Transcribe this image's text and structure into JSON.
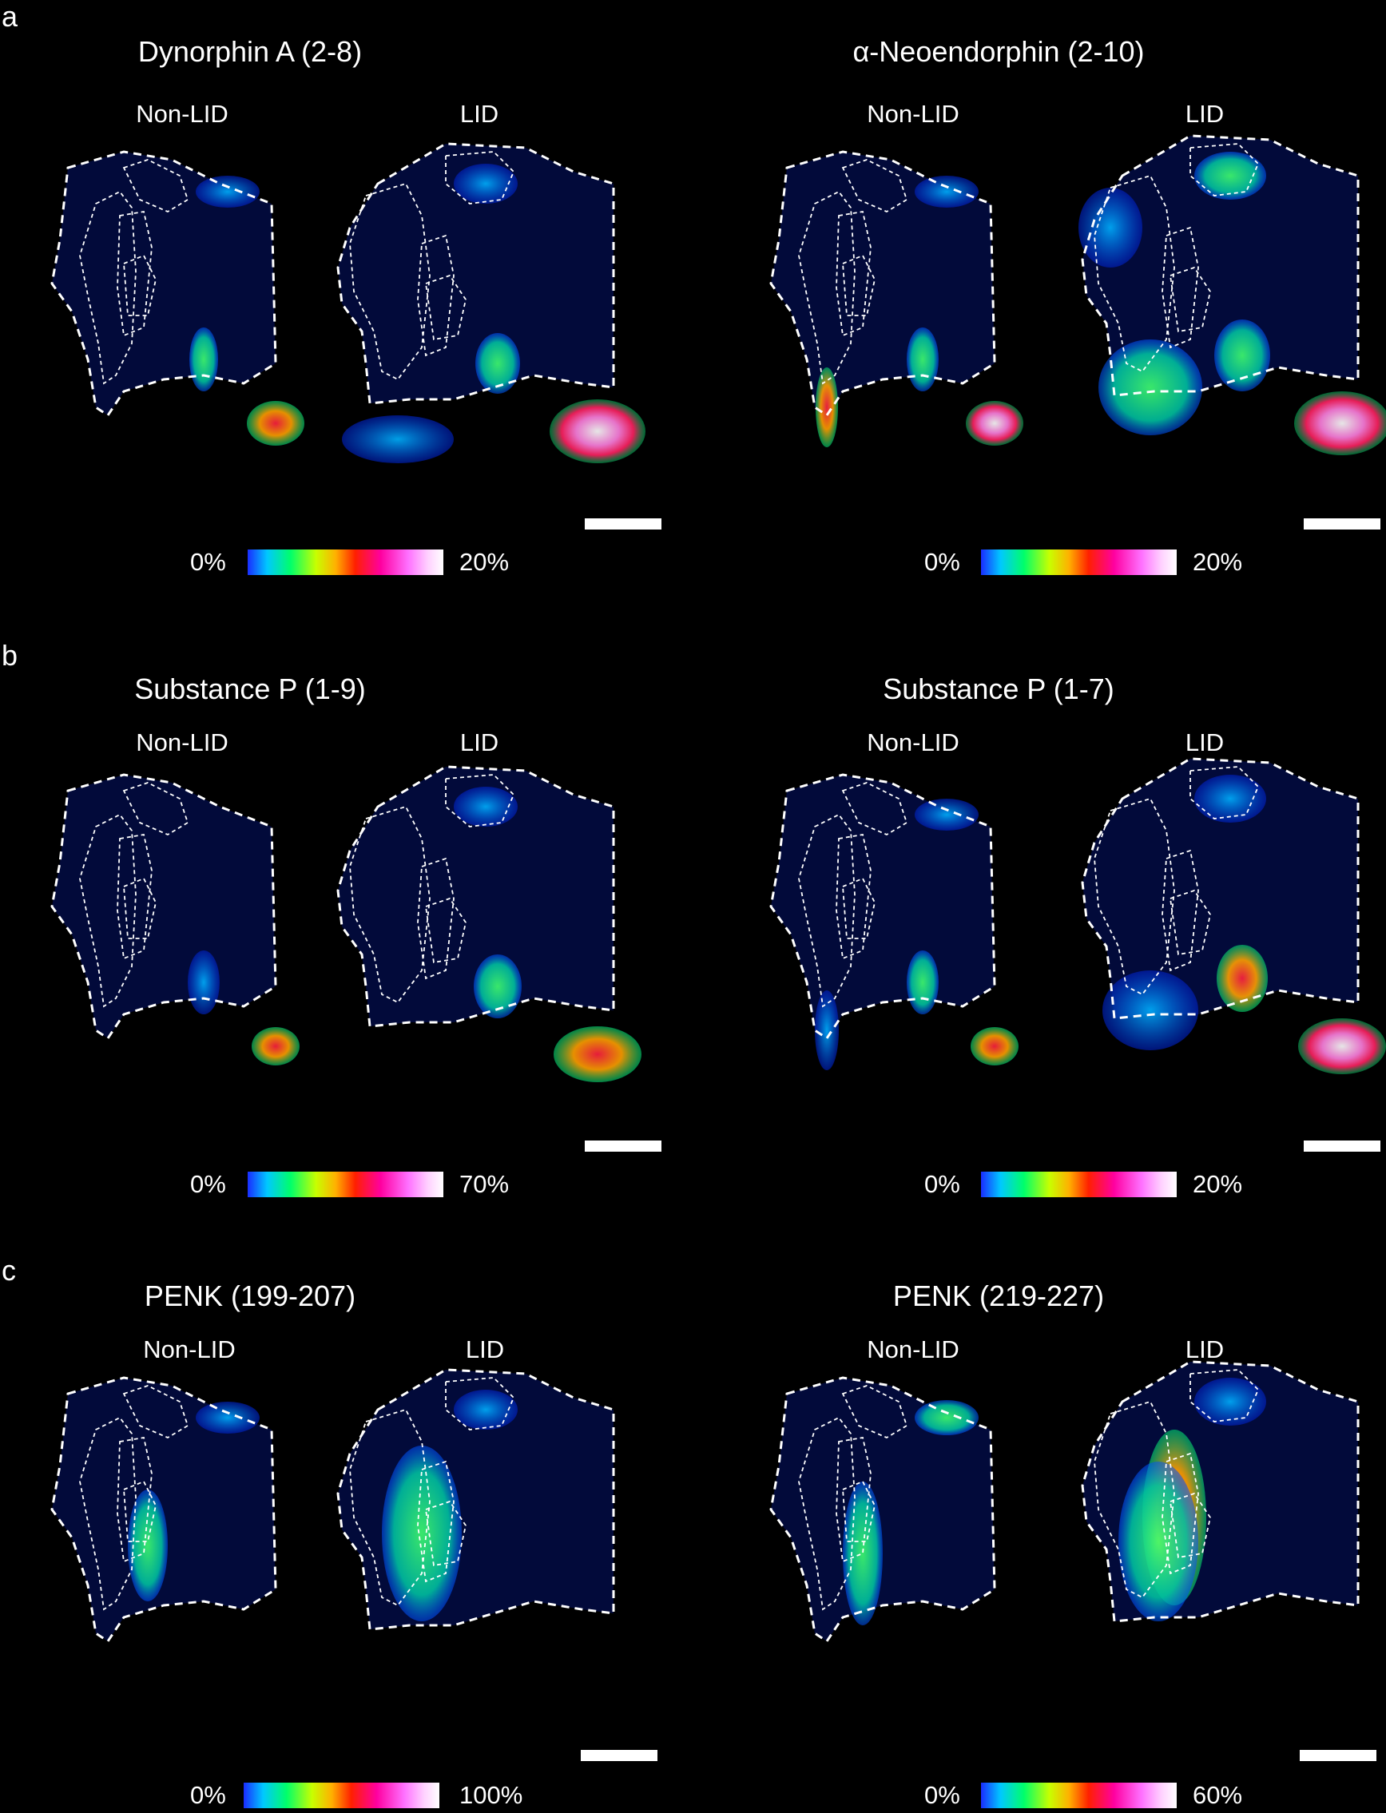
{
  "rows": [
    {
      "letter": "a",
      "panels": [
        {
          "title": "Dynorphin A (2-8)",
          "conditions": [
            "Non-LID",
            "LID"
          ],
          "scale_min": "0%",
          "scale_max": "20%"
        },
        {
          "title": "α-Neoendorphin (2-10)",
          "conditions": [
            "Non-LID",
            "LID"
          ],
          "scale_min": "0%",
          "scale_max": "20%"
        }
      ]
    },
    {
      "letter": "b",
      "panels": [
        {
          "title": "Substance P (1-9)",
          "conditions": [
            "Non-LID",
            "LID"
          ],
          "scale_min": "0%",
          "scale_max": "70%"
        },
        {
          "title": "Substance P (1-7)",
          "conditions": [
            "Non-LID",
            "LID"
          ],
          "scale_min": "0%",
          "scale_max": "20%"
        }
      ]
    },
    {
      "letter": "c",
      "panels": [
        {
          "title": "PENK (199-207)",
          "conditions": [
            "Non-LID",
            "LID"
          ],
          "scale_min": "0%",
          "scale_max": "100%"
        },
        {
          "title": "PENK (219-227)",
          "conditions": [
            "Non-LID",
            "LID"
          ],
          "scale_min": "0%",
          "scale_max": "60%"
        }
      ]
    }
  ],
  "colormap": [
    "#1a2cff",
    "#00c8ff",
    "#00ff6a",
    "#c8ff00",
    "#ffb000",
    "#ff2000",
    "#ff00a0",
    "#ff70ff",
    "#ffffff"
  ]
}
